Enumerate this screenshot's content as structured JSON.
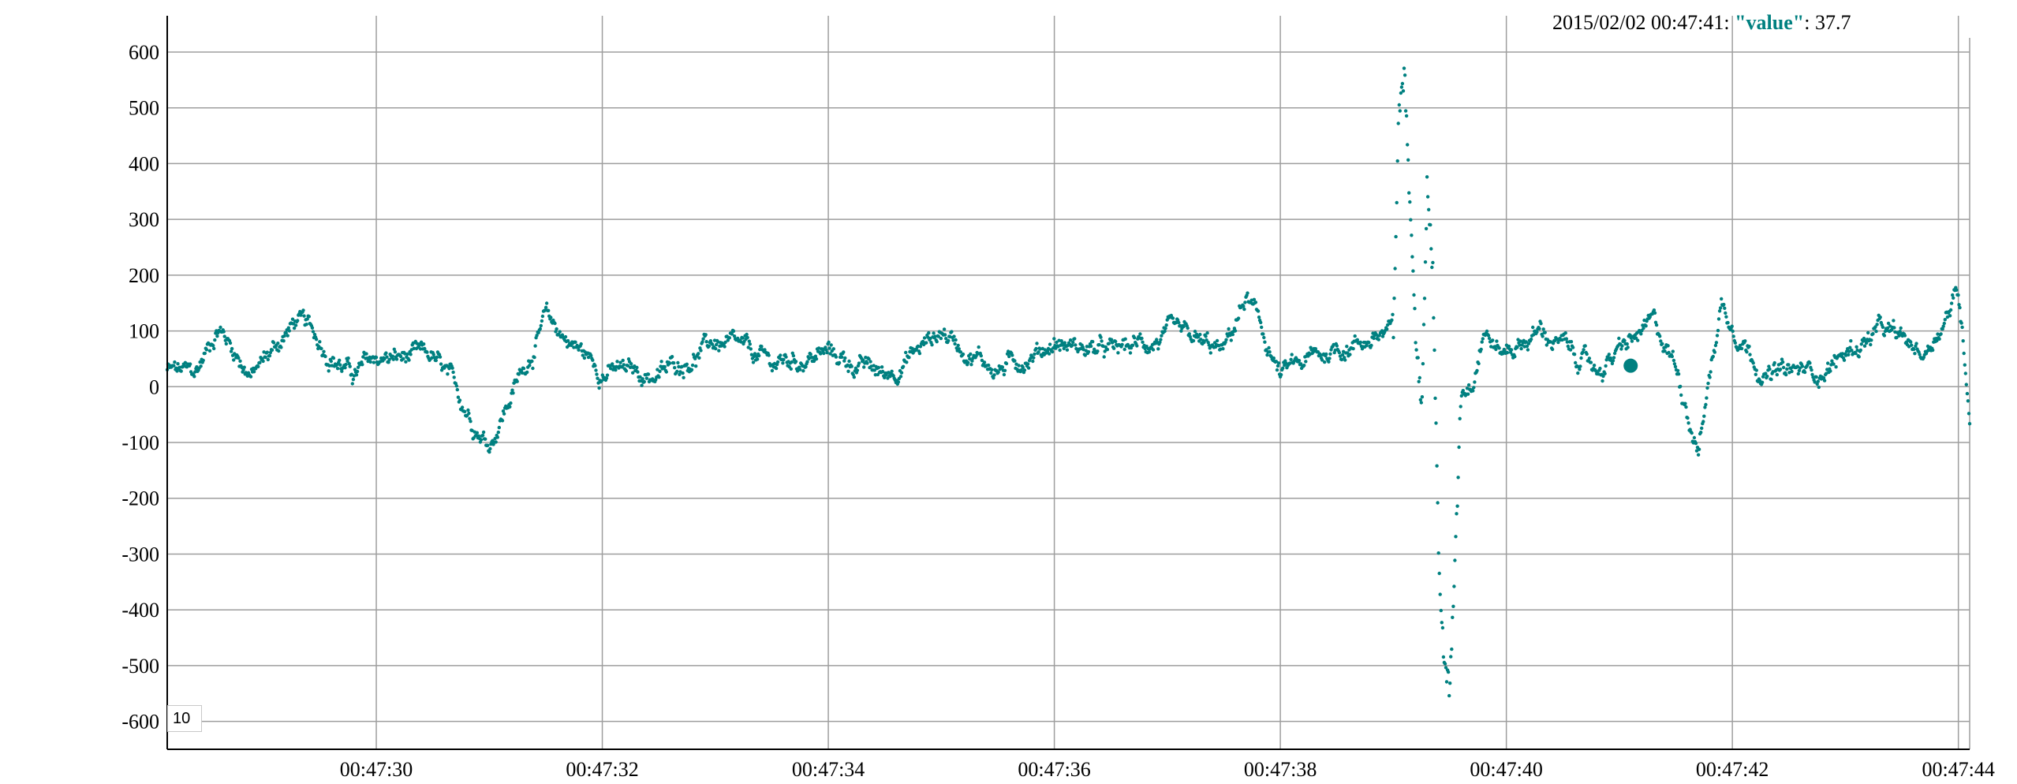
{
  "chart_data": {
    "type": "scatter",
    "title": "",
    "xlabel": "",
    "ylabel": "",
    "x_tick_labels": [
      "00:47:30",
      "00:47:32",
      "00:47:34",
      "00:47:36",
      "00:47:38",
      "00:47:40",
      "00:47:42",
      "00:47:44"
    ],
    "y_tick_labels": [
      "600",
      "500",
      "400",
      "300",
      "200",
      "100",
      "0",
      "-100",
      "-200",
      "-300",
      "-400",
      "-500",
      "-600"
    ],
    "xlim": [
      "2015/02/02 00:47:28.15",
      "2015/02/02 00:47:44.10"
    ],
    "ylim": [
      -650,
      665
    ],
    "grid": true,
    "series": [
      {
        "name": "value",
        "color": "#008080",
        "marker": "dot",
        "x_start": "2015/02/02 00:47:28.15",
        "x_end": "2015/02/02 00:47:44.10",
        "envelope": {
          "x_seconds_after_00:47:28": [
            0.15,
            0.4,
            0.6,
            0.9,
            1.3,
            1.8,
            2.0,
            2.5,
            3.0,
            3.5,
            4.0,
            4.5,
            5.0,
            5.5,
            6.0,
            6.5,
            7.0,
            7.5,
            8.0,
            8.5,
            9.0,
            9.5,
            9.7,
            10.0,
            10.5,
            11.0,
            11.05,
            11.1,
            11.15,
            11.2,
            11.25,
            11.3,
            11.35,
            11.4,
            11.45,
            11.5,
            11.55,
            11.6,
            11.7,
            11.8,
            11.95,
            12.3,
            12.8,
            13.3,
            13.5,
            13.7,
            13.9,
            14.3,
            14.8,
            15.3,
            15.7,
            16.0,
            16.1
          ],
          "y": [
            30,
            20,
            110,
            20,
            120,
            20,
            50,
            50,
            -100,
            120,
            30,
            20,
            80,
            40,
            60,
            20,
            100,
            30,
            80,
            60,
            90,
            60,
            160,
            20,
            70,
            100,
            500,
            560,
            300,
            80,
            -40,
            370,
            200,
            -300,
            -500,
            -540,
            -300,
            0,
            20,
            110,
            60,
            100,
            30,
            110,
            40,
            -110,
            150,
            20,
            30,
            100,
            60,
            170,
            -40
          ]
        }
      }
    ],
    "annotation": {
      "timestamp": "2015/02/02 00:47:41",
      "series_name": "\"value\"",
      "value": "37.7",
      "highlight_time": "2015/02/02 00:47:41.10",
      "highlight_value": 37.7
    }
  },
  "legend": {
    "timestamp": "2015/02/02 00:47:41:",
    "series_name": "\"value\"",
    "separator": ":",
    "value": "37.7"
  },
  "roller": {
    "value": "10"
  },
  "colors": {
    "series": "#008080",
    "grid": "#9e9e9e",
    "axis": "#000000",
    "background": "#ffffff"
  }
}
